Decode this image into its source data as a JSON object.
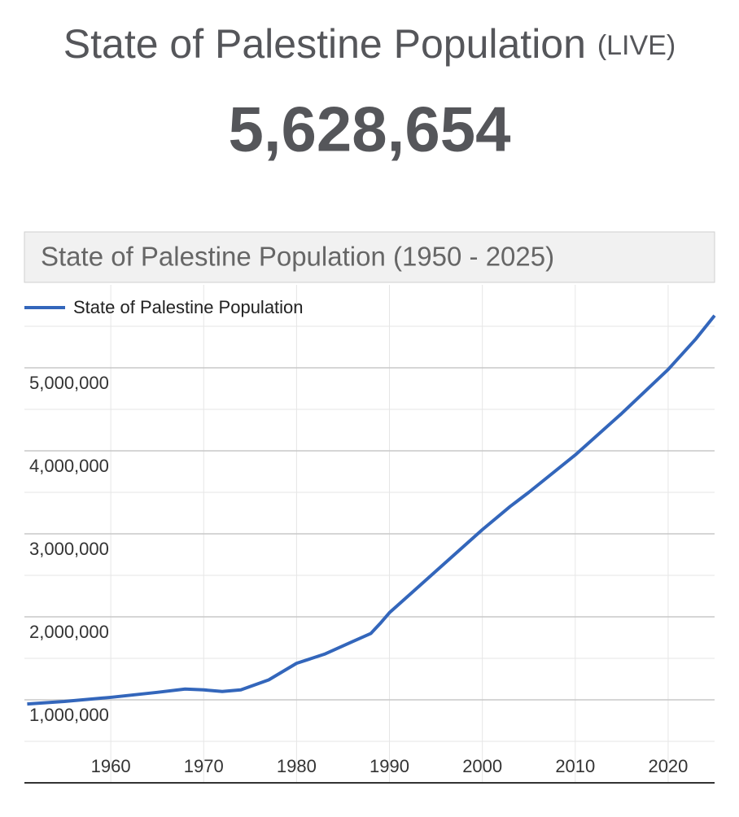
{
  "header": {
    "title": "State of Palestine Population",
    "title_suffix": "(LIVE)",
    "live_count": "5,628,654"
  },
  "chart_data": {
    "type": "line",
    "title": "State of Palestine Population (1950 - 2025)",
    "x": [
      1951,
      1955,
      1960,
      1965,
      1968,
      1970,
      1972,
      1974,
      1977,
      1980,
      1983,
      1986,
      1988,
      1989,
      1990,
      1992,
      1995,
      2000,
      2003,
      2005,
      2010,
      2015,
      2020,
      2023,
      2025
    ],
    "series": [
      {
        "name": "State of Palestine Population",
        "color": "#3366bb",
        "values": [
          950000,
          980000,
          1030000,
          1090000,
          1130000,
          1120000,
          1100000,
          1120000,
          1240000,
          1440000,
          1550000,
          1700000,
          1800000,
          1920000,
          2050000,
          2250000,
          2550000,
          3050000,
          3330000,
          3500000,
          3950000,
          4450000,
          4980000,
          5350000,
          5630000
        ]
      }
    ],
    "xlim": [
      1950,
      2025
    ],
    "xticks": [
      1960,
      1970,
      1980,
      1990,
      2000,
      2010,
      2020
    ],
    "ylim": [
      0,
      6000000
    ],
    "yticks": [
      {
        "value": 1000000,
        "label": "1,000,000"
      },
      {
        "value": 2000000,
        "label": "2,000,000"
      },
      {
        "value": 3000000,
        "label": "3,000,000"
      },
      {
        "value": 4000000,
        "label": "4,000,000"
      },
      {
        "value": 5000000,
        "label": "5,000,000"
      }
    ],
    "grid": true,
    "legend": "top-left"
  }
}
